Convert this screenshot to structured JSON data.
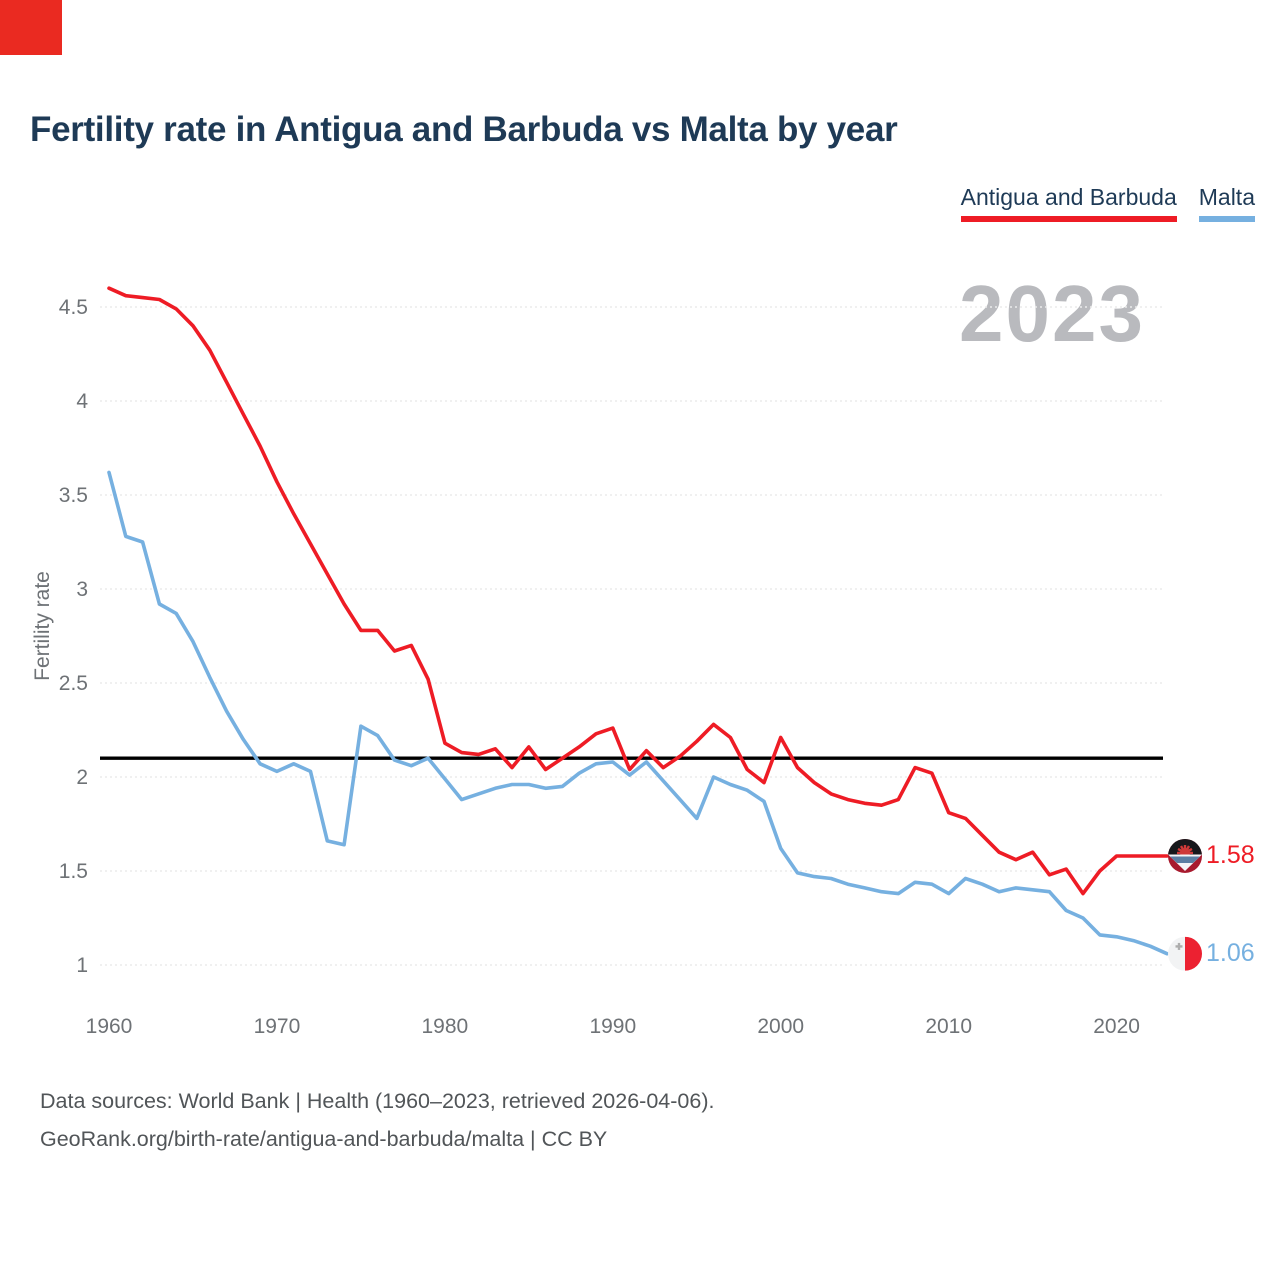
{
  "corner_block_color": "#ea2a21",
  "title": "Fertility rate in Antigua and Barbuda vs Malta by year",
  "watermark": "2023",
  "ylabel": "Fertility rate",
  "footer": {
    "line1": "Data sources: World Bank | Health (1960–2023, retrieved 2026-04-06).",
    "line2": "GeoRank.org/birth-rate/antigua-and-barbuda/malta | CC BY"
  },
  "colors": {
    "antigua": "#ee1c25",
    "malta": "#76b0e0",
    "navy_text": "#1e3a56",
    "tick_text": "#6e7276",
    "gridline": "#ebebeb",
    "reference_line": "#000000"
  },
  "chart_data": {
    "type": "line",
    "title": "Fertility rate in Antigua and Barbuda vs Malta by year",
    "xlabel": "",
    "ylabel": "Fertility rate",
    "years": {
      "start": 1960,
      "end": 2023
    },
    "xticks": [
      1960,
      1970,
      1980,
      1990,
      2000,
      2010,
      2020
    ],
    "yticks": [
      4.5,
      4,
      3.5,
      3,
      2.5,
      2,
      1.5,
      1
    ],
    "xlim": [
      1960,
      2023
    ],
    "ylim": [
      0.85,
      4.75
    ],
    "grid": true,
    "legend_position": "top-right",
    "reference_line": 2.1,
    "series": [
      {
        "name": "Antigua and Barbuda",
        "color": "#ee1c25",
        "end_label": "1.58",
        "flag": "antigua-and-barbuda",
        "values": [
          4.6,
          4.56,
          4.55,
          4.54,
          4.49,
          4.4,
          4.27,
          4.1,
          3.93,
          3.76,
          3.57,
          3.4,
          3.24,
          3.08,
          2.92,
          2.78,
          2.78,
          2.67,
          2.7,
          2.52,
          2.18,
          2.13,
          2.12,
          2.15,
          2.05,
          2.16,
          2.04,
          2.1,
          2.16,
          2.23,
          2.26,
          2.04,
          2.14,
          2.05,
          2.11,
          2.19,
          2.28,
          2.21,
          2.04,
          1.97,
          2.21,
          2.05,
          1.97,
          1.91,
          1.88,
          1.86,
          1.85,
          1.88,
          2.05,
          2.02,
          1.81,
          1.78,
          1.69,
          1.6,
          1.56,
          1.6,
          1.48,
          1.51,
          1.38,
          1.5,
          1.58,
          1.58,
          1.58,
          1.58
        ]
      },
      {
        "name": "Malta",
        "color": "#76b0e0",
        "end_label": "1.06",
        "flag": "malta",
        "values": [
          3.62,
          3.28,
          3.25,
          2.92,
          2.87,
          2.72,
          2.53,
          2.35,
          2.2,
          2.07,
          2.03,
          2.07,
          2.03,
          1.66,
          1.64,
          2.27,
          2.22,
          2.09,
          2.06,
          2.1,
          1.99,
          1.88,
          1.91,
          1.94,
          1.96,
          1.96,
          1.94,
          1.95,
          2.02,
          2.07,
          2.08,
          2.01,
          2.08,
          1.98,
          1.88,
          1.78,
          2.0,
          1.96,
          1.93,
          1.87,
          1.62,
          1.49,
          1.47,
          1.46,
          1.43,
          1.41,
          1.39,
          1.38,
          1.44,
          1.43,
          1.38,
          1.46,
          1.43,
          1.39,
          1.41,
          1.4,
          1.39,
          1.29,
          1.25,
          1.16,
          1.15,
          1.13,
          1.1,
          1.06
        ]
      }
    ]
  }
}
